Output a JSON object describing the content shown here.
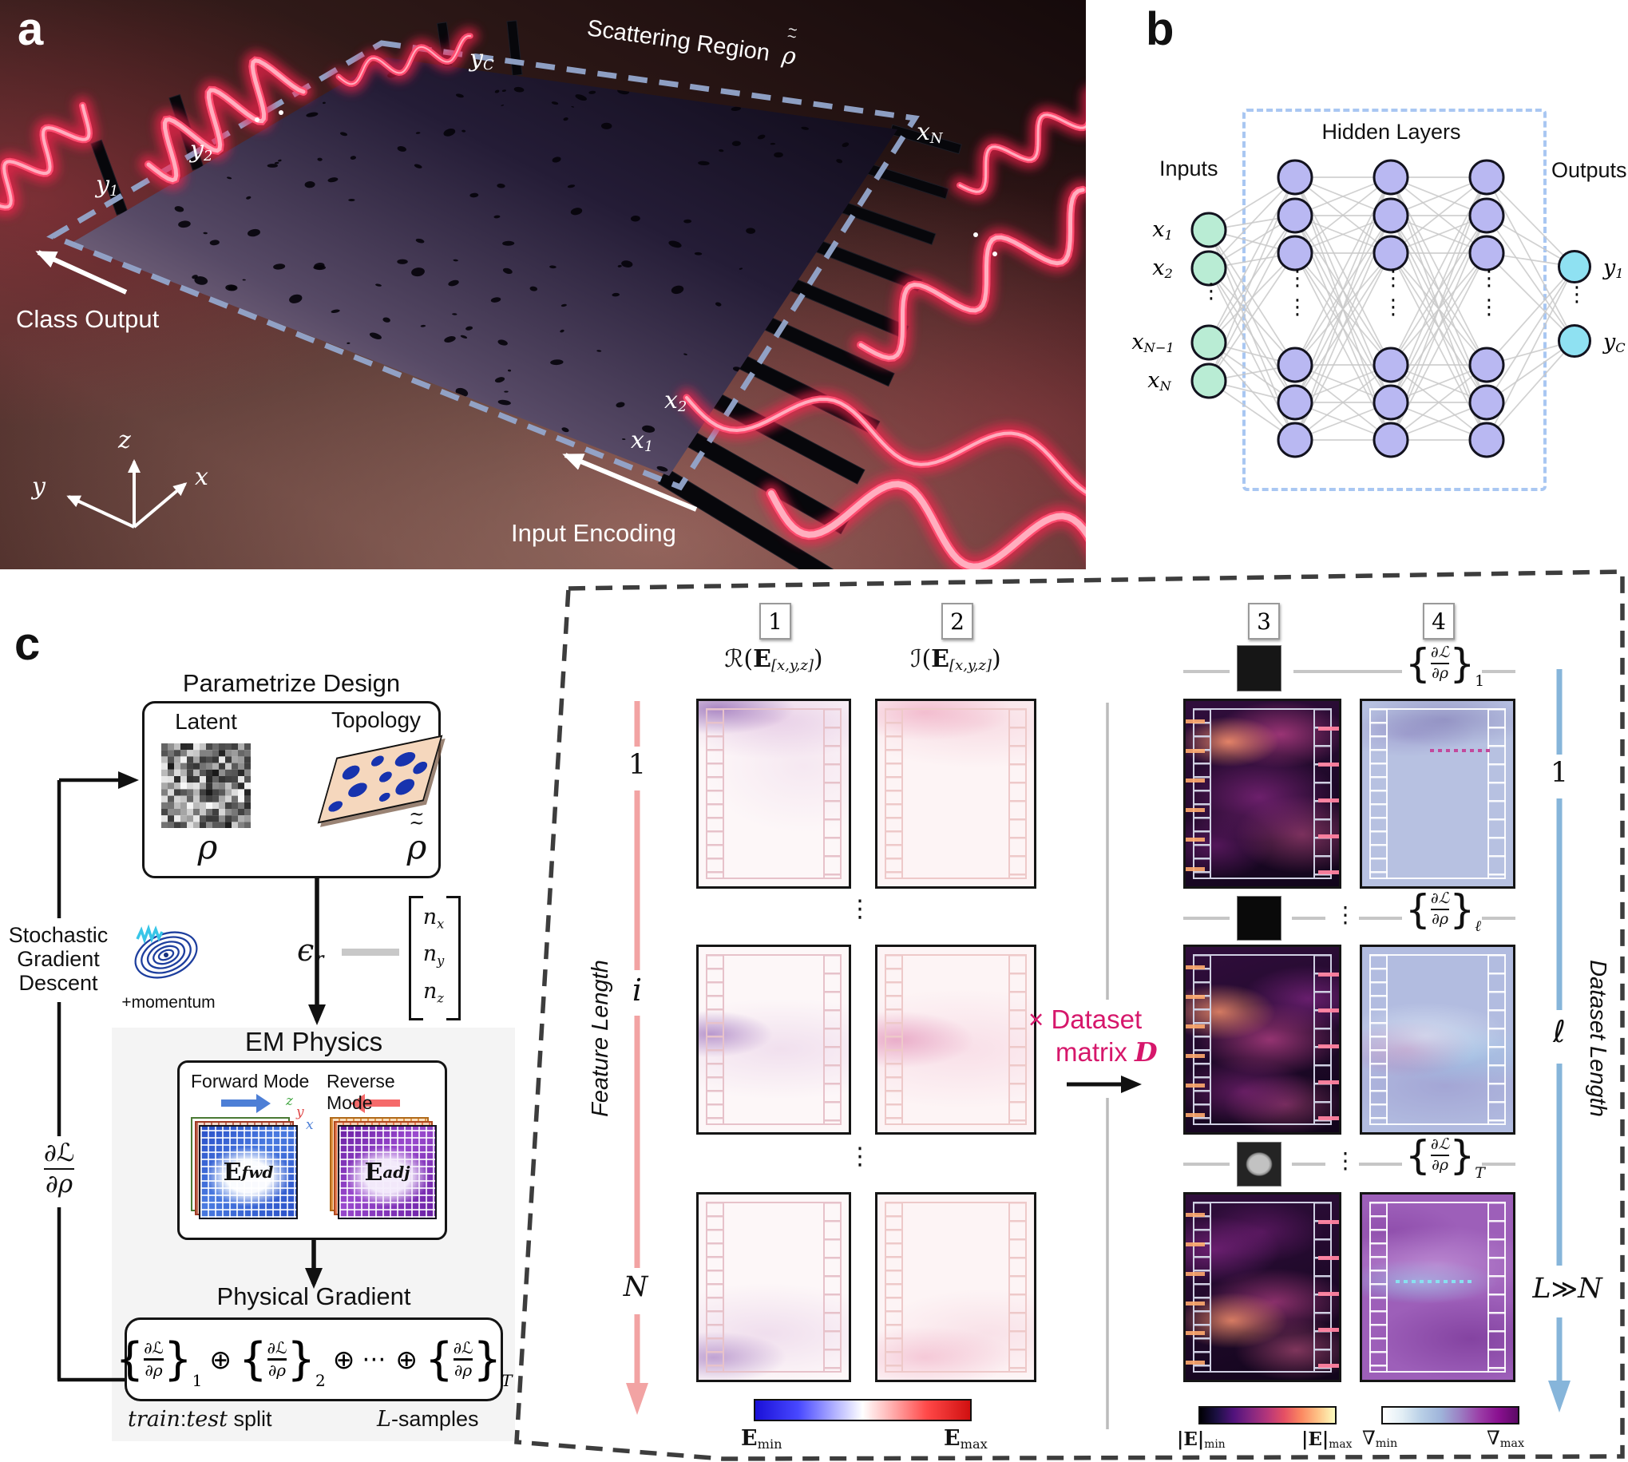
{
  "misc": {
    "tilde": "~",
    "vdots": "⋮"
  },
  "math": {
    "dL": "∂ℒ",
    "drho": "∂ρ",
    "oplus": "⊕",
    "cdots": "⋯",
    "lbrace": "{",
    "rbrace": "}"
  },
  "panel_a": {
    "tag": "a",
    "scattering_label": "Scattering Region",
    "rho": "ρ",
    "class_output": "Class Output",
    "input_encoding": "Input Encoding",
    "ports": {
      "y1": {
        "base": "y",
        "sub": "1"
      },
      "y2": {
        "base": "y",
        "sub": "2"
      },
      "yC": {
        "base": "y",
        "sub": "C"
      },
      "x1": {
        "base": "x",
        "sub": "1"
      },
      "x2": {
        "base": "x",
        "sub": "2"
      },
      "xN": {
        "base": "x",
        "sub": "N"
      }
    },
    "axes": {
      "x": "x",
      "y": "y",
      "z": "z"
    }
  },
  "panel_b": {
    "tag": "b",
    "inputs_label": "Inputs",
    "outputs_label": "Outputs",
    "hidden_label": "Hidden Layers",
    "labels": {
      "x1": {
        "base": "x",
        "sub": "1"
      },
      "x2": {
        "base": "x",
        "sub": "2"
      },
      "xN1": {
        "base": "x",
        "sub": "N−1"
      },
      "xN": {
        "base": "x",
        "sub": "N"
      },
      "y1": {
        "base": "y",
        "sub": "1"
      },
      "yC": {
        "base": "y",
        "sub": "C"
      }
    },
    "colors": {
      "input": "#b9ecd4",
      "hidden": "#b9b8f2",
      "output": "#8fe1f2"
    }
  },
  "panel_c": {
    "tag": "c",
    "parametrize_title": "Parametrize Design",
    "latent_label": "Latent",
    "topology_label": "Topology",
    "rho": "ρ",
    "sgd_lines": [
      "Stochastic",
      "Gradient",
      "Descent"
    ],
    "momentum": "+momentum",
    "epsilon": {
      "base": "ϵ",
      "sub": "r"
    },
    "vector": {
      "nx": {
        "base": "n",
        "sub": "x"
      },
      "ny": {
        "base": "n",
        "sub": "y"
      },
      "nz": {
        "base": "n",
        "sub": "z"
      }
    },
    "em_title": "EM Physics",
    "forward_mode": "Forward Mode",
    "reverse_mode": "Reverse Mode",
    "axes": {
      "z": "z",
      "y": "y",
      "x": "x"
    },
    "e_fwd": {
      "base": "E",
      "sub": "fwd"
    },
    "e_adj": {
      "base": "E",
      "sub": "adj"
    },
    "grad_title": "Physical Gradient",
    "formula_subs": [
      "1",
      "2",
      "T"
    ],
    "train_test": {
      "train": "train",
      "colon": ":",
      "test": "test",
      "split": "split"
    },
    "l_samples": {
      "l": "L",
      "rest": "-samples"
    }
  },
  "right_panel": {
    "col_numbers": [
      "1",
      "2",
      "3",
      "4"
    ],
    "col1_header": {
      "script": "ℛ",
      "open": "(",
      "E": "E",
      "sub": "[x,y,z]",
      "close": ")"
    },
    "col2_header": {
      "script": "ℐ",
      "open": "(",
      "E": "E",
      "sub": "[x,y,z]",
      "close": ")"
    },
    "grad_subs": [
      "1",
      "ℓ",
      "T"
    ],
    "dataset_matrix": {
      "times": "×",
      "line1": "Dataset",
      "line2": "matrix",
      "d": "D"
    },
    "feature_length": "Feature Length",
    "dataset_length": "Dataset Length",
    "feature_ticks": [
      "1",
      "i",
      "N"
    ],
    "dataset_ticks": [
      "1",
      "ℓ"
    ],
    "l_gg_n": {
      "l": "L",
      "gg": "≫",
      "n": "N"
    },
    "colorbars": {
      "e_min": {
        "base": "E",
        "sub": "min"
      },
      "e_max": {
        "base": "E",
        "sub": "max"
      },
      "abse_min": {
        "base": "|E|",
        "sub": "min"
      },
      "abse_max": {
        "base": "|E|",
        "sub": "max"
      },
      "grad_min": {
        "base": "∇",
        "sub": "min"
      },
      "grad_max": {
        "base": "∇",
        "sub": "max"
      }
    }
  }
}
